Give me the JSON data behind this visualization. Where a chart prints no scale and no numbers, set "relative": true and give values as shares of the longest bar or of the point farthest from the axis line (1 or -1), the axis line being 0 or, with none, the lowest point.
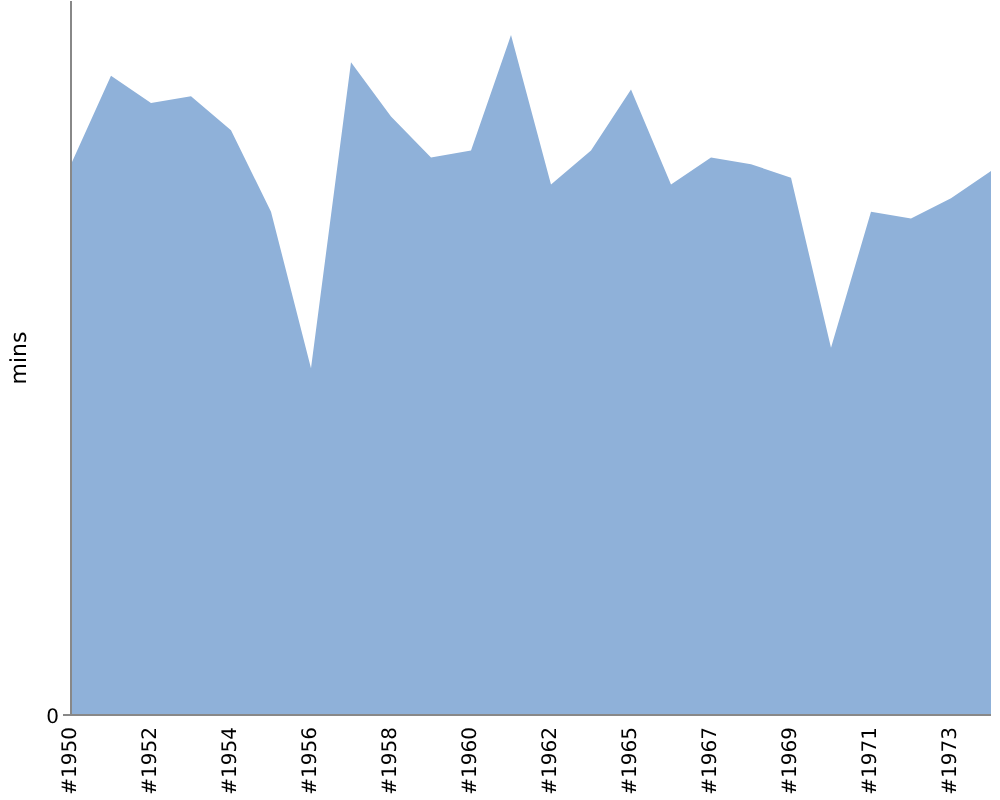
{
  "chart_data": {
    "type": "area",
    "ylabel": "mins",
    "relative": true,
    "categories": [
      "#1950",
      null,
      "#1952",
      null,
      "#1954",
      null,
      "#1956",
      null,
      "#1958",
      null,
      "#1960",
      null,
      "#1962",
      null,
      "#1965",
      null,
      "#1967",
      null,
      "#1969",
      null,
      "#1971",
      null,
      "#1973",
      null
    ],
    "values": [
      0.81,
      0.94,
      0.9,
      0.91,
      0.86,
      0.74,
      0.51,
      0.96,
      0.88,
      0.82,
      0.83,
      1,
      0.78,
      0.83,
      0.92,
      0.78,
      0.82,
      0.81,
      0.79,
      0.54,
      0.74,
      0.73,
      0.76,
      0.8
    ],
    "color": "#8fb1d9",
    "annotations": [
      "0"
    ]
  }
}
